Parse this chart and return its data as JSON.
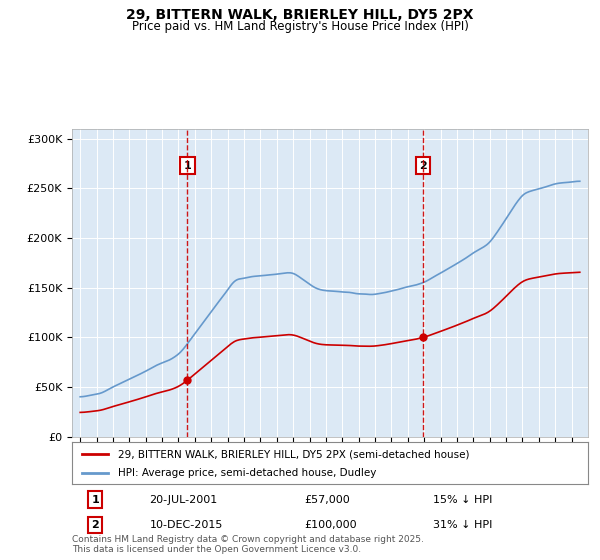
{
  "title1": "29, BITTERN WALK, BRIERLEY HILL, DY5 2PX",
  "title2": "Price paid vs. HM Land Registry's House Price Index (HPI)",
  "background_color": "#dce9f5",
  "plot_bg_color": "#dce9f5",
  "ylim": [
    0,
    310000
  ],
  "yticks": [
    0,
    50000,
    100000,
    150000,
    200000,
    250000,
    300000
  ],
  "ytick_labels": [
    "£0",
    "£50K",
    "£100K",
    "£150K",
    "£200K",
    "£250K",
    "£300K"
  ],
  "sale1": {
    "year": 2001.55,
    "price": 57000,
    "label": "1",
    "date": "20-JUL-2001",
    "pct": "15%"
  },
  "sale2": {
    "year": 2015.94,
    "price": 100000,
    "label": "2",
    "date": "10-DEC-2015",
    "pct": "31%"
  },
  "legend_line1": "29, BITTERN WALK, BRIERLEY HILL, DY5 2PX (semi-detached house)",
  "legend_line2": "HPI: Average price, semi-detached house, Dudley",
  "footer": "Contains HM Land Registry data © Crown copyright and database right 2025.\nThis data is licensed under the Open Government Licence v3.0.",
  "sale_color": "#cc0000",
  "hpi_color": "#6699cc",
  "vline_color": "#cc0000",
  "annot_table": [
    [
      "1",
      "20-JUL-2001",
      "£57,000",
      "15% ↓ HPI"
    ],
    [
      "2",
      "10-DEC-2015",
      "£100,000",
      "31% ↓ HPI"
    ]
  ]
}
